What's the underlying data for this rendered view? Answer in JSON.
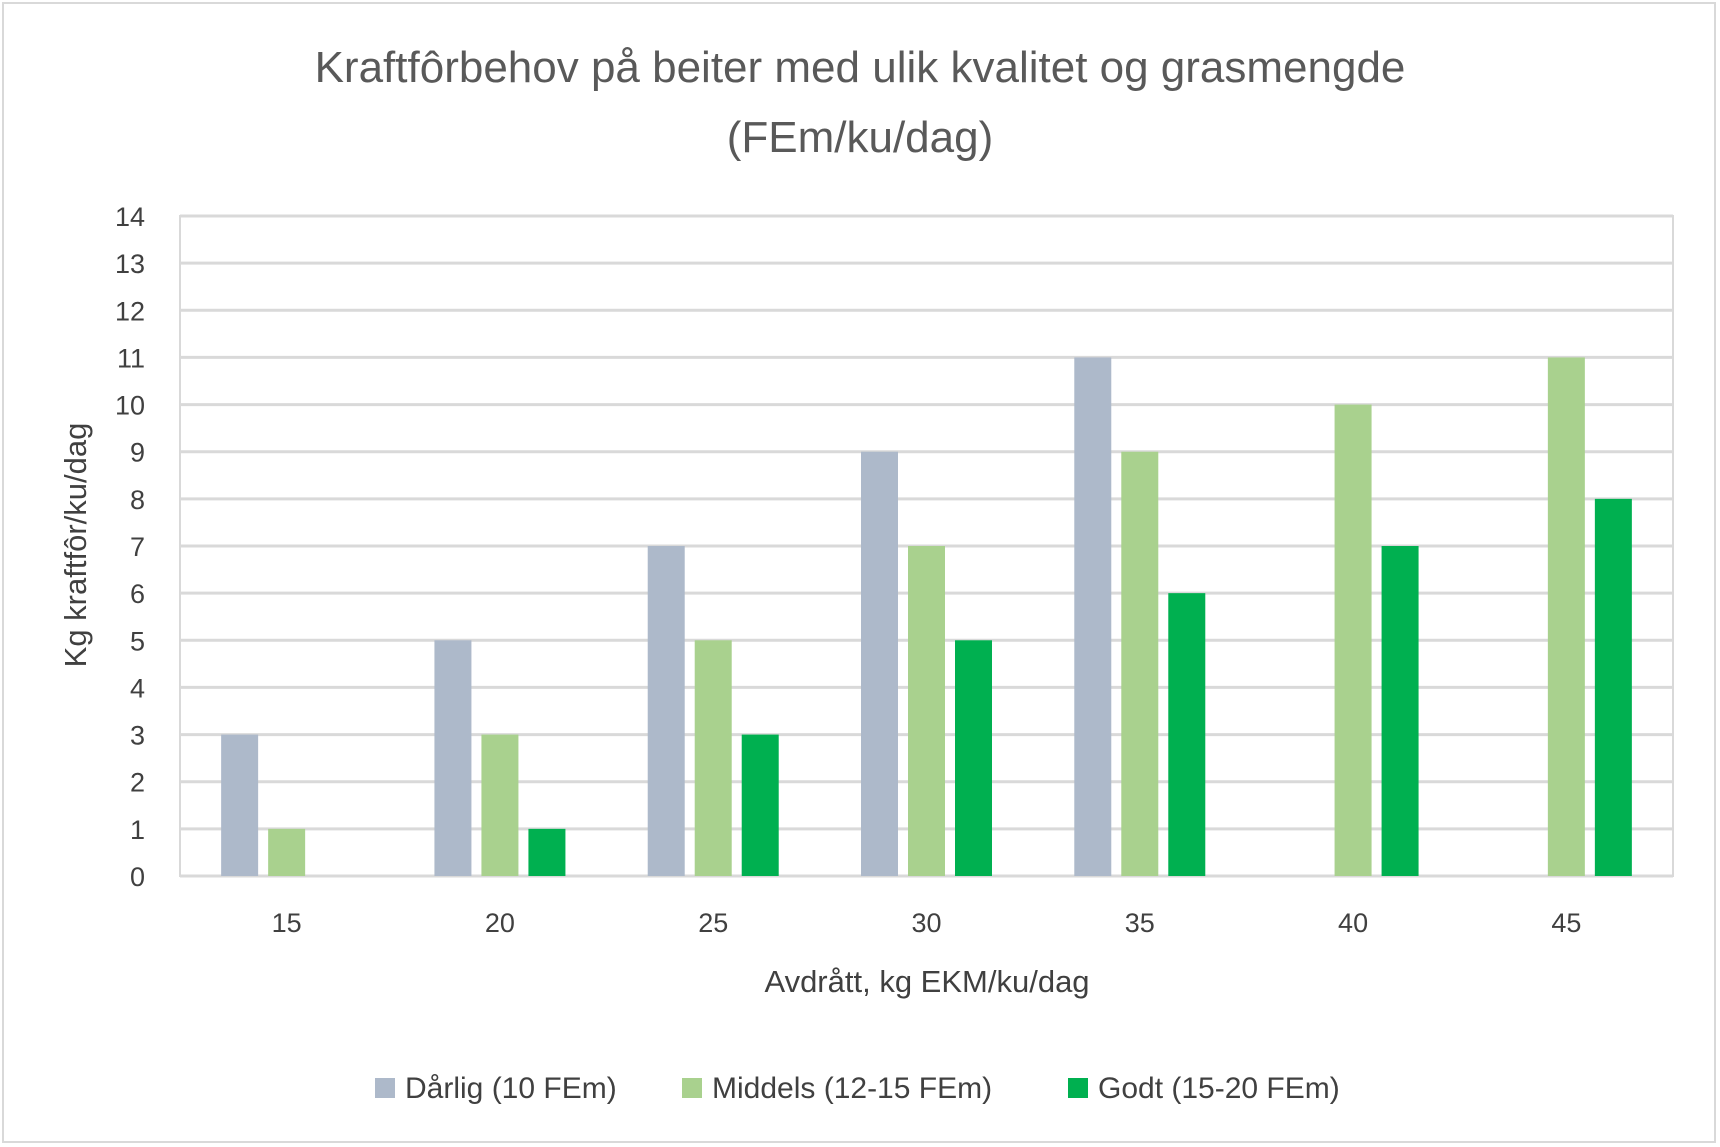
{
  "chart_data": {
    "type": "bar",
    "title_line1": "Kraftfôrbehov på beiter med ulik kvalitet og grasmengde",
    "title_line2": "(FEm/ku/dag)",
    "xlabel": "Avdrått, kg EKM/ku/dag",
    "ylabel": "Kg kraftfôr/ku/dag",
    "ylim": [
      0,
      14
    ],
    "yticks": [
      0,
      1,
      2,
      3,
      4,
      5,
      6,
      7,
      8,
      9,
      10,
      11,
      12,
      13,
      14
    ],
    "categories": [
      "15",
      "20",
      "25",
      "30",
      "35",
      "40",
      "45"
    ],
    "series": [
      {
        "name": "Dårlig (10 FEm)",
        "color": "#adb9ca",
        "values": [
          3,
          5,
          7,
          9,
          11,
          null,
          null
        ]
      },
      {
        "name": "Middels (12-15 FEm)",
        "color": "#a9d18e",
        "values": [
          1,
          3,
          5,
          7,
          9,
          10,
          11
        ]
      },
      {
        "name": "Godt (15-20 FEm)",
        "color": "#00b050",
        "values": [
          null,
          1,
          3,
          5,
          6,
          7,
          8
        ]
      }
    ],
    "grid": true,
    "legend_position": "bottom"
  }
}
